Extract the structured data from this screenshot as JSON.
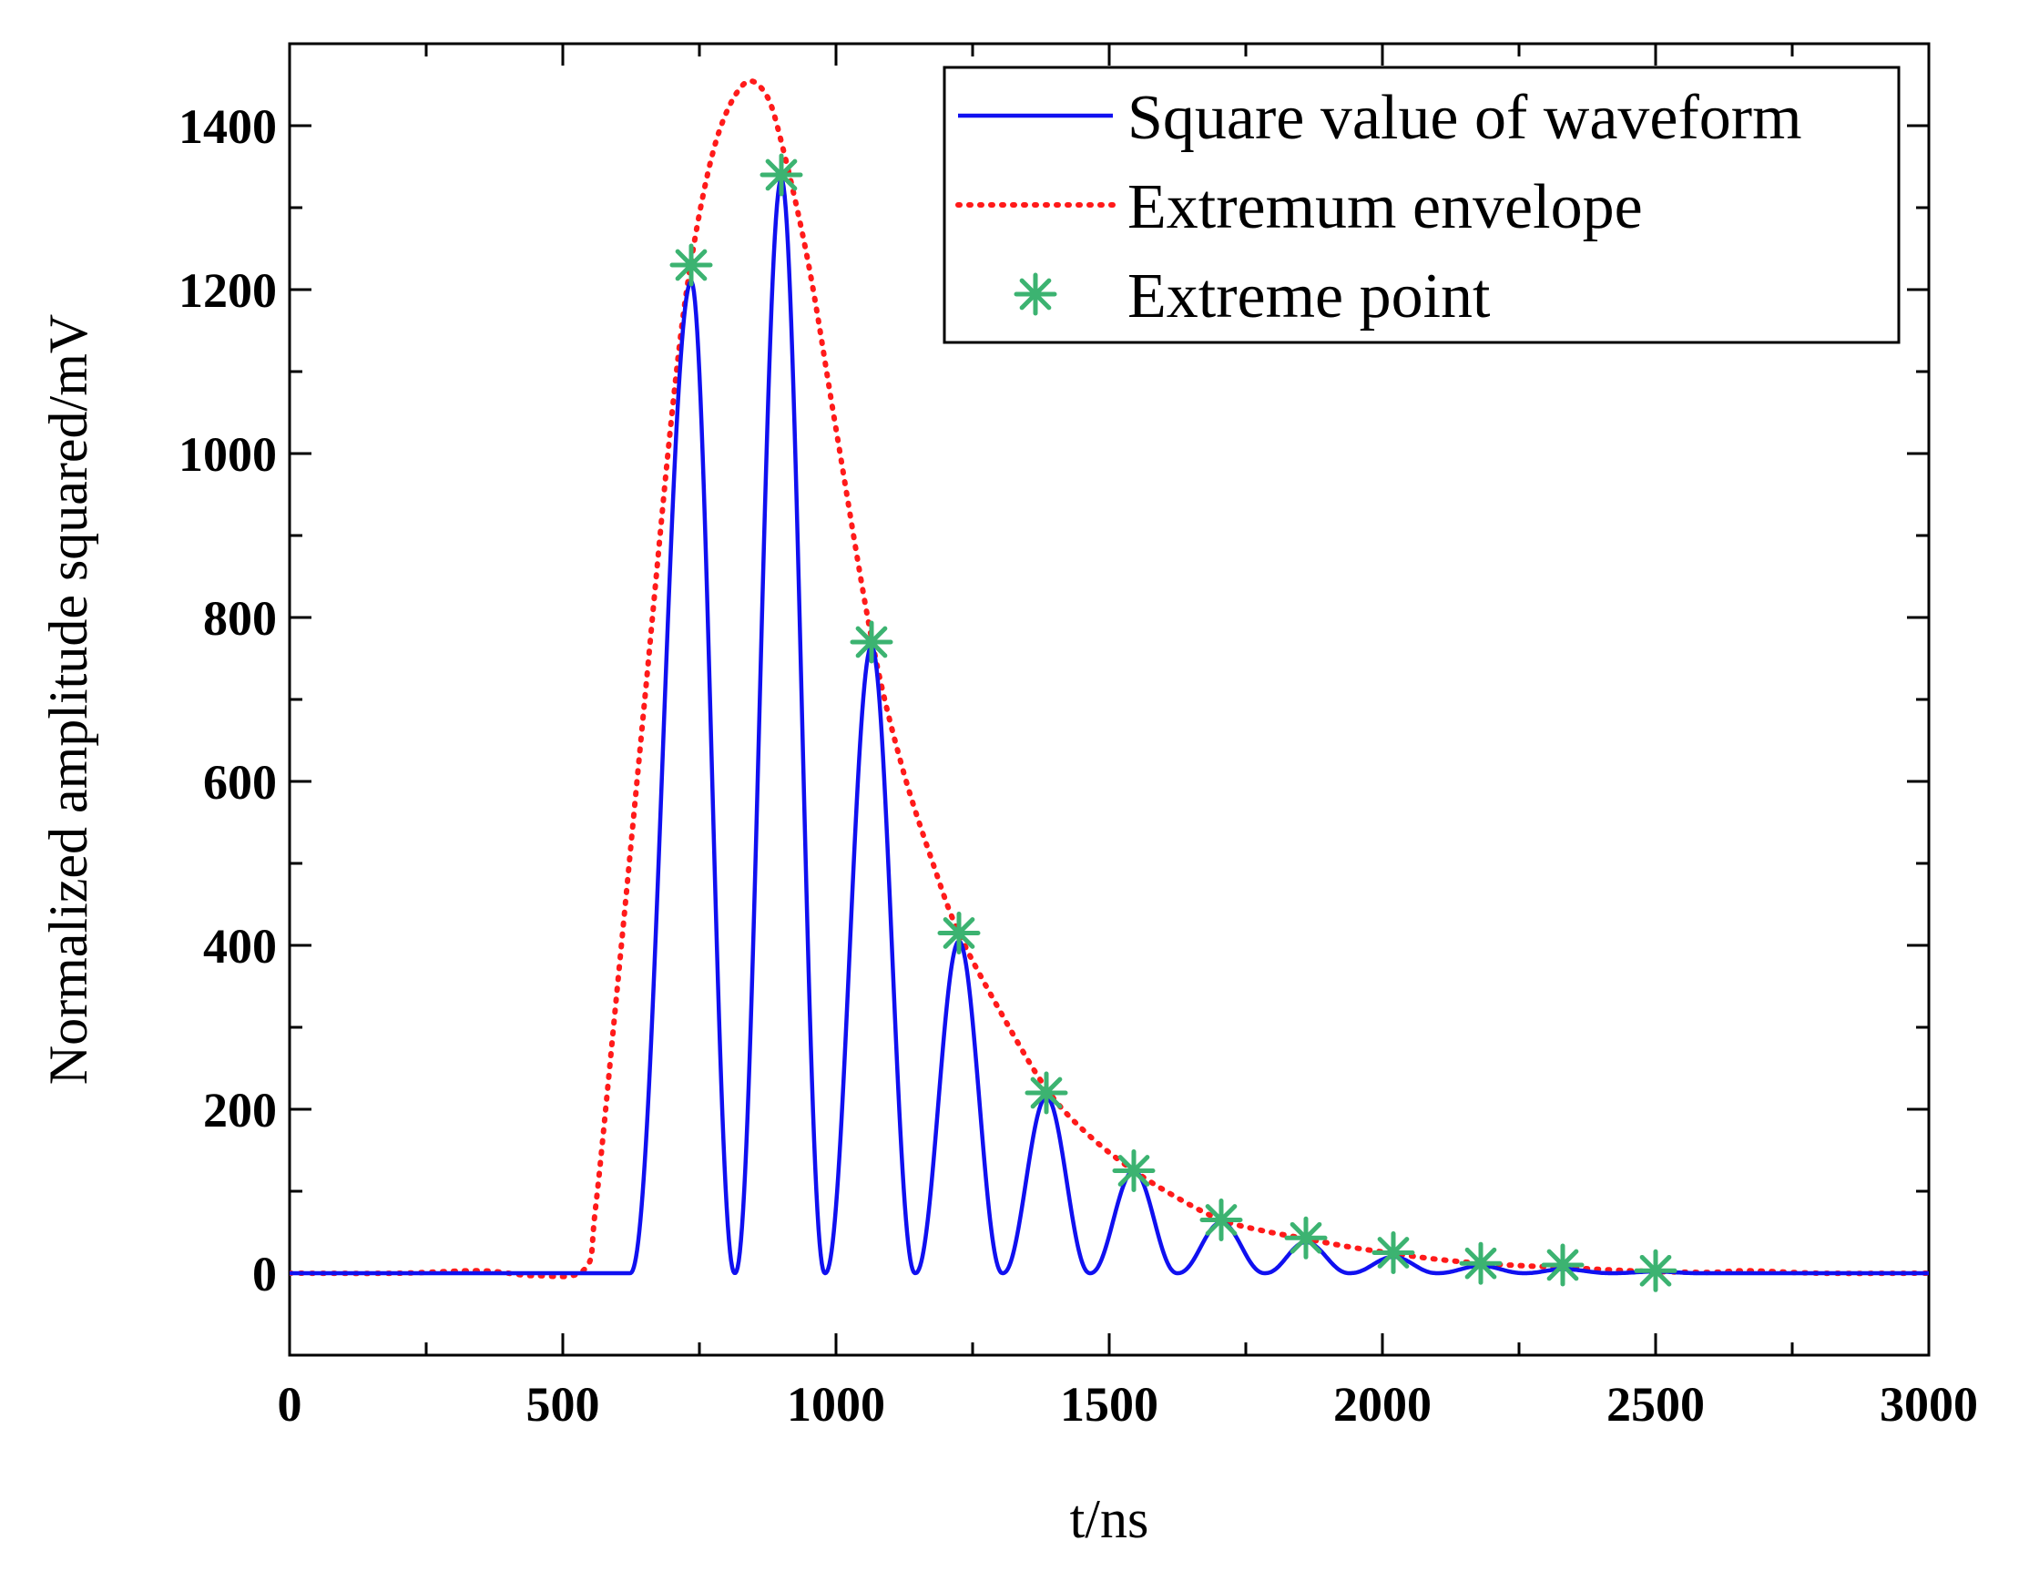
{
  "chart_data": {
    "type": "line",
    "title": "",
    "xlabel": "t/ns",
    "ylabel": "Normalized amplitude squared/mV",
    "xlim": [
      0,
      3000
    ],
    "ylim": [
      -100,
      1500
    ],
    "x_ticks": [
      0,
      500,
      1000,
      1500,
      2000,
      2500,
      3000
    ],
    "x_tick_labels": [
      "0",
      "500",
      "1000",
      "1500",
      "2000",
      "2500",
      "3000"
    ],
    "y_ticks": [
      0,
      200,
      400,
      600,
      800,
      1000,
      1200,
      1400
    ],
    "y_tick_labels": [
      "0",
      "200",
      "400",
      "600",
      "800",
      "1000",
      "1200",
      "1400"
    ],
    "grid": false,
    "legend_position": "top-right",
    "colors": {
      "waveform": "#1010f0",
      "envelope": "#ff1a1a",
      "points": "#3cb371",
      "axis": "#000000"
    },
    "series": [
      {
        "name": "Square value of waveform",
        "style": "solid",
        "color": "#1010f0",
        "peaks": [
          [
            735,
            1210
          ],
          [
            900,
            1335
          ],
          [
            1065,
            765
          ],
          [
            1225,
            405
          ],
          [
            1385,
            215
          ],
          [
            1545,
            125
          ],
          [
            1705,
            62
          ],
          [
            1860,
            38
          ],
          [
            2020,
            20
          ],
          [
            2180,
            9
          ],
          [
            2330,
            5
          ],
          [
            2500,
            2
          ]
        ],
        "troughs_x": [
          815,
          980,
          1145,
          1305,
          1465,
          1625,
          1785,
          1940,
          2100,
          2260,
          2420
        ]
      },
      {
        "name": "Extremum envelope",
        "style": "dotted",
        "color": "#ff1a1a",
        "x": [
          0,
          200,
          350,
          450,
          540,
          560,
          600,
          650,
          700,
          735,
          780,
          830,
          870,
          900,
          950,
          1000,
          1065,
          1120,
          1180,
          1225,
          1300,
          1385,
          1460,
          1545,
          1630,
          1705,
          1780,
          1860,
          1940,
          2020,
          2100,
          2180,
          2260,
          2330,
          2420,
          2500,
          2600,
          2670,
          2800,
          3000
        ],
        "y": [
          0,
          0,
          3,
          -3,
          5,
          80,
          350,
          700,
          1050,
          1235,
          1380,
          1450,
          1440,
          1380,
          1230,
          1030,
          775,
          620,
          495,
          415,
          320,
          225,
          170,
          125,
          90,
          65,
          52,
          42,
          32,
          24,
          17,
          12,
          9,
          7,
          4,
          2,
          1,
          3,
          0,
          0
        ]
      },
      {
        "name": "Extreme point",
        "marker": "asterisk",
        "color": "#3cb371",
        "x": [
          735,
          900,
          1065,
          1225,
          1385,
          1545,
          1705,
          1860,
          2020,
          2180,
          2330,
          2500
        ],
        "y": [
          1230,
          1340,
          770,
          415,
          220,
          125,
          65,
          43,
          25,
          12,
          10,
          3
        ]
      }
    ]
  }
}
